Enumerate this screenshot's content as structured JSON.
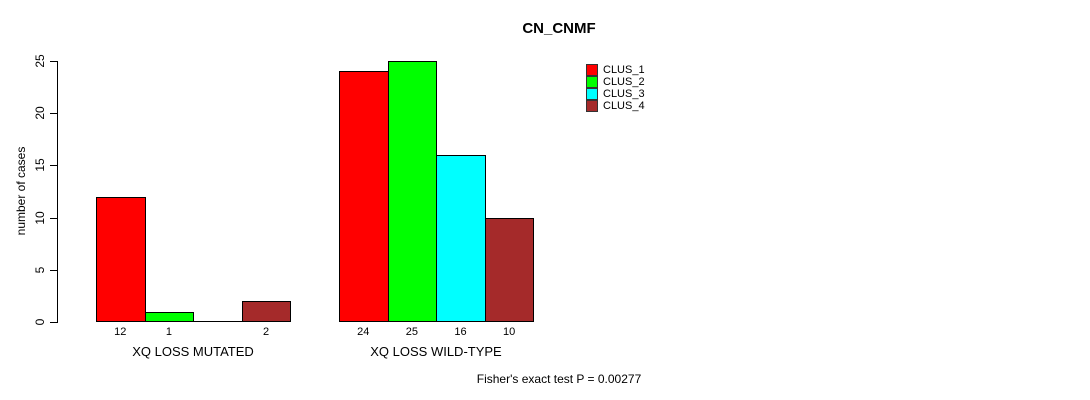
{
  "title": "CN_CNMF",
  "y_axis_label": "number of cases",
  "caption": "Fisher's exact test P = 0.00277",
  "chart_data": {
    "type": "bar",
    "title": "CN_CNMF",
    "xlabel": "",
    "ylabel": "number of cases",
    "categories": [
      "XQ LOSS MUTATED",
      "XQ LOSS WILD-TYPE"
    ],
    "series": [
      {
        "name": "CLUS_1",
        "color": "#FF0000",
        "values": [
          12,
          24
        ]
      },
      {
        "name": "CLUS_2",
        "color": "#00FF00",
        "values": [
          1,
          25
        ]
      },
      {
        "name": "CLUS_3",
        "color": "#00FFFF",
        "values": [
          0,
          16
        ]
      },
      {
        "name": "CLUS_4",
        "color": "#A52A2A",
        "values": [
          2,
          10
        ]
      }
    ],
    "yticks": [
      0,
      5,
      10,
      15,
      20,
      25
    ],
    "ylim": [
      0,
      25
    ],
    "grid": false,
    "legend_position": "top-right",
    "bar_value_labels": true,
    "zero_bars_unlabeled": true,
    "annotation": "Fisher's exact test P = 0.00277"
  }
}
